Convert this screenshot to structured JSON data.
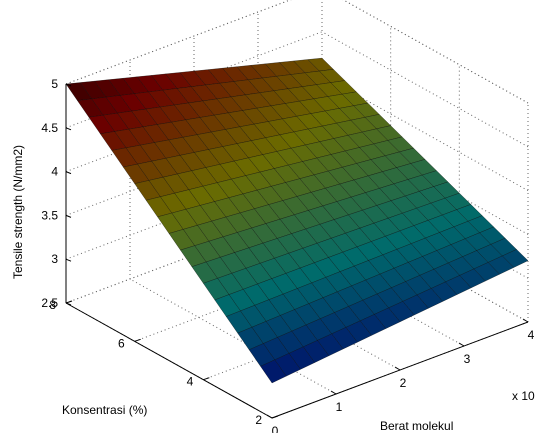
{
  "chart_data": {
    "type": "surface",
    "zlabel": "Tensile strength (N/mm2)",
    "ylabel": "Konsentrasi (%)",
    "xlabel": "Berat molekul",
    "x_exponent_label": "x 10",
    "x_ticks": [
      "0",
      "1",
      "2",
      "3",
      "4"
    ],
    "y_ticks": [
      "2",
      "4",
      "6",
      "8"
    ],
    "z_ticks": [
      "2.5",
      "3",
      "3.5",
      "4",
      "4.5",
      "5"
    ],
    "xlim": [
      0,
      4
    ],
    "ylim": [
      2,
      8
    ],
    "zlim": [
      2.5,
      5
    ],
    "grid": true,
    "colormap": "jet-dark",
    "corner_values": [
      {
        "x": 0,
        "y": 8,
        "z": 5.0
      },
      {
        "x": 4,
        "y": 8,
        "z": 4.2
      },
      {
        "x": 0,
        "y": 2,
        "z": 2.9
      },
      {
        "x": 4,
        "y": 2,
        "z": 3.2
      }
    ]
  }
}
